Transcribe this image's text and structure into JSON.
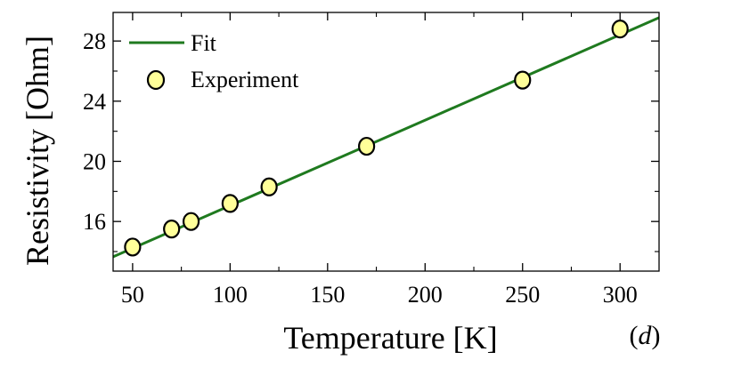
{
  "chart_data": {
    "type": "scatter",
    "xlabel": "Temperature [K]",
    "ylabel": "Resistivity [Ohm]",
    "xlim": [
      40,
      320
    ],
    "ylim": [
      12.7,
      29.9
    ],
    "x_ticks": [
      50,
      100,
      150,
      200,
      250,
      300
    ],
    "y_ticks": [
      16,
      20,
      24,
      28
    ],
    "grid": false,
    "legend_position": "top-left",
    "panel_label": "d",
    "series": [
      {
        "name": "Fit",
        "kind": "line",
        "color": "#1f7a1f",
        "x": [
          40,
          320
        ],
        "y": [
          13.65,
          29.55
        ]
      },
      {
        "name": "Experiment",
        "kind": "markers",
        "color": "#ffff99",
        "edge_color": "#000000",
        "x": [
          50,
          70,
          80,
          100,
          120,
          170,
          250,
          300
        ],
        "y": [
          14.3,
          15.5,
          16.0,
          17.2,
          18.3,
          21.0,
          25.4,
          28.8
        ]
      }
    ]
  }
}
